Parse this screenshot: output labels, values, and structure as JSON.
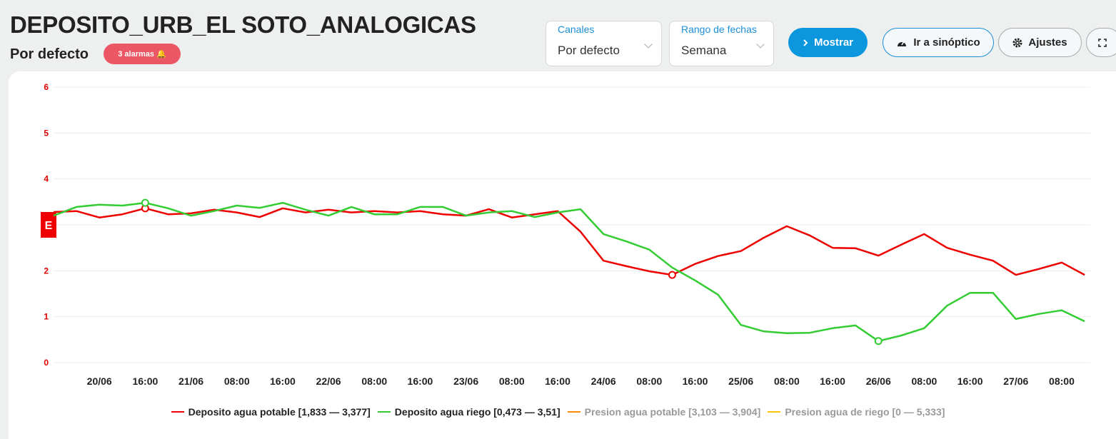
{
  "header": {
    "title": "DEPOSITO_URB_EL SOTO_ANALOGICAS",
    "subtitle": "Por defecto",
    "alarm_badge": "3 alarmas 🔔"
  },
  "controls": {
    "channels": {
      "label": "Canales",
      "value": "Por defecto"
    },
    "date_range": {
      "label": "Rango de fechas",
      "value": "Semana"
    },
    "buttons": [
      "Mostrar",
      "Ir a sinóptico",
      "Ajustes"
    ]
  },
  "chart_data": {
    "type": "line",
    "axis_badge": "E",
    "categories": [
      null,
      null,
      "20/06",
      null,
      "16:00",
      null,
      "21/06",
      null,
      "08:00",
      null,
      "16:00",
      null,
      "22/06",
      null,
      "08:00",
      null,
      "16:00",
      null,
      "23/06",
      null,
      "08:00",
      null,
      "16:00",
      null,
      "24/06",
      null,
      "08:00",
      null,
      "16:00",
      null,
      "25/06",
      null,
      "08:00",
      null,
      "16:00",
      null,
      "26/06",
      null,
      "08:00",
      null,
      "16:00",
      null,
      "27/06",
      null,
      "08:00",
      null
    ],
    "ylim": [
      0,
      6
    ],
    "yticks": [
      0,
      1,
      2,
      3,
      4,
      5,
      6
    ],
    "grid": true,
    "series": [
      {
        "name": "Deposito agua potable [1,833 — 3,377]",
        "color": "#ee0000",
        "values": [
          3.28,
          3.3,
          3.16,
          3.23,
          3.36,
          3.23,
          3.25,
          3.33,
          3.27,
          3.17,
          3.36,
          3.27,
          3.33,
          3.27,
          3.3,
          3.27,
          3.3,
          3.23,
          3.2,
          3.34,
          3.16,
          3.23,
          3.3,
          2.85,
          2.22,
          2.1,
          1.99,
          1.91,
          2.15,
          2.32,
          2.43,
          2.72,
          2.97,
          2.77,
          2.5,
          2.49,
          2.33,
          2.57,
          2.8,
          2.5,
          2.35,
          2.22,
          1.91,
          2.04,
          2.18,
          1.91
        ]
      },
      {
        "name": "Deposito agua riego [0,473 — 3,51]",
        "color": "#33cc33",
        "values": [
          3.2,
          3.39,
          3.44,
          3.42,
          3.48,
          3.36,
          3.2,
          3.3,
          3.42,
          3.37,
          3.48,
          3.33,
          3.2,
          3.39,
          3.23,
          3.23,
          3.39,
          3.39,
          3.2,
          3.27,
          3.3,
          3.17,
          3.27,
          3.34,
          2.8,
          2.64,
          2.46,
          2.07,
          1.79,
          1.48,
          0.82,
          0.68,
          0.64,
          0.65,
          0.75,
          0.81,
          0.47,
          0.59,
          0.75,
          1.24,
          1.52,
          1.52,
          0.95,
          1.06,
          1.14,
          0.9
        ]
      },
      {
        "name": "Presion agua potable [3,103 — 3,904]",
        "color": "#ff8c00",
        "hidden": true
      },
      {
        "name": "Presion agua de riego [0 — 5,333]",
        "color": "#ffc400",
        "hidden": true
      }
    ]
  }
}
